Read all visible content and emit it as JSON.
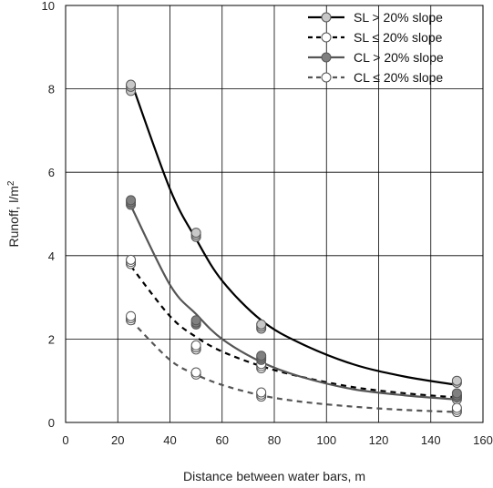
{
  "chart_data": {
    "type": "scatter",
    "xlabel": "Distance between water bars, m",
    "ylabel": "Runoff, l/m",
    "ylabel_superscript": "2",
    "xlim": [
      0,
      160
    ],
    "ylim": [
      0,
      10
    ],
    "xticks": [
      "0",
      "20",
      "40",
      "60",
      "80",
      "100",
      "120",
      "140",
      "160"
    ],
    "yticks": [
      "0",
      "2",
      "4",
      "6",
      "8",
      "10"
    ],
    "grid": true,
    "legend_position": "top-right",
    "series": [
      {
        "name": "SL > 20% slope",
        "line_color": "#000000",
        "line_style": "solid",
        "marker_fill": "#c8c8c8",
        "points": [
          [
            25,
            7.95
          ],
          [
            25,
            8.05
          ],
          [
            25,
            8.1
          ],
          [
            50,
            4.45
          ],
          [
            50,
            4.5
          ],
          [
            50,
            4.55
          ],
          [
            75,
            2.25
          ],
          [
            75,
            2.3
          ],
          [
            75,
            2.35
          ],
          [
            150,
            0.95
          ],
          [
            150,
            1.0
          ]
        ],
        "curve": [
          [
            25,
            8.2
          ],
          [
            40,
            5.6
          ],
          [
            50,
            4.4
          ],
          [
            60,
            3.4
          ],
          [
            75,
            2.45
          ],
          [
            90,
            1.9
          ],
          [
            110,
            1.4
          ],
          [
            130,
            1.1
          ],
          [
            150,
            0.9
          ]
        ]
      },
      {
        "name": "SL ≤ 20% slope",
        "line_color": "#000000",
        "line_style": "dashed",
        "marker_fill": "#ffffff",
        "points": [
          [
            25,
            3.8
          ],
          [
            25,
            3.85
          ],
          [
            25,
            3.9
          ],
          [
            50,
            1.75
          ],
          [
            50,
            1.8
          ],
          [
            50,
            1.85
          ],
          [
            75,
            1.3
          ],
          [
            75,
            1.35
          ],
          [
            75,
            1.4
          ],
          [
            150,
            0.55
          ],
          [
            150,
            0.6
          ],
          [
            150,
            0.65
          ]
        ],
        "curve": [
          [
            25,
            3.75
          ],
          [
            40,
            2.55
          ],
          [
            50,
            2.05
          ],
          [
            60,
            1.7
          ],
          [
            75,
            1.35
          ],
          [
            90,
            1.1
          ],
          [
            110,
            0.85
          ],
          [
            130,
            0.7
          ],
          [
            150,
            0.6
          ]
        ]
      },
      {
        "name": "CL > 20% slope",
        "line_color": "#555555",
        "line_style": "solid",
        "marker_fill": "#808080",
        "points": [
          [
            25,
            5.22
          ],
          [
            25,
            5.28
          ],
          [
            25,
            5.33
          ],
          [
            50,
            2.35
          ],
          [
            50,
            2.4
          ],
          [
            50,
            2.45
          ],
          [
            75,
            1.5
          ],
          [
            75,
            1.55
          ],
          [
            75,
            1.6
          ],
          [
            150,
            0.6
          ],
          [
            150,
            0.65
          ],
          [
            150,
            0.7
          ]
        ],
        "curve": [
          [
            25,
            5.2
          ],
          [
            40,
            3.3
          ],
          [
            50,
            2.6
          ],
          [
            60,
            2.0
          ],
          [
            75,
            1.45
          ],
          [
            90,
            1.1
          ],
          [
            110,
            0.8
          ],
          [
            130,
            0.65
          ],
          [
            150,
            0.55
          ]
        ]
      },
      {
        "name": "CL ≤ 20% slope",
        "line_color": "#555555",
        "line_style": "dashed",
        "marker_fill": "#ffffff",
        "points": [
          [
            25,
            2.45
          ],
          [
            25,
            2.5
          ],
          [
            25,
            2.55
          ],
          [
            50,
            1.15
          ],
          [
            50,
            1.2
          ],
          [
            75,
            0.62
          ],
          [
            75,
            0.67
          ],
          [
            75,
            0.72
          ],
          [
            150,
            0.25
          ],
          [
            150,
            0.3
          ],
          [
            150,
            0.35
          ]
        ],
        "curve": [
          [
            25,
            2.45
          ],
          [
            40,
            1.5
          ],
          [
            50,
            1.15
          ],
          [
            60,
            0.9
          ],
          [
            75,
            0.65
          ],
          [
            90,
            0.5
          ],
          [
            110,
            0.38
          ],
          [
            130,
            0.3
          ],
          [
            150,
            0.25
          ]
        ]
      }
    ]
  }
}
